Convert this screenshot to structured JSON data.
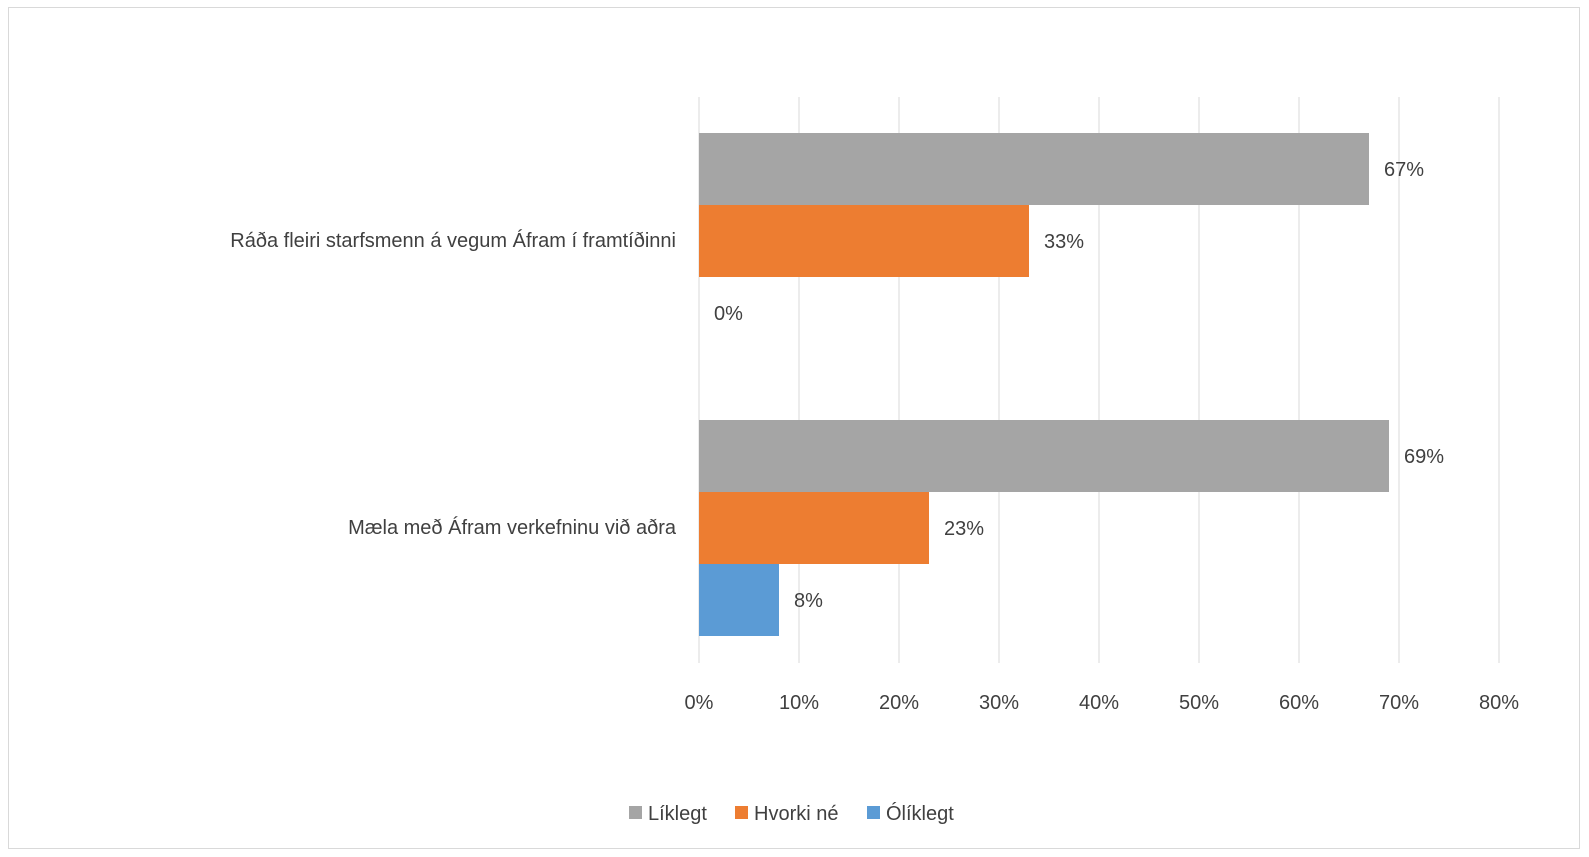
{
  "chart_data": {
    "type": "bar",
    "orientation": "horizontal",
    "categories": [
      "Ráða fleiri starfsmenn á vegum Áfram í framtíðinni",
      "Mæla með Áfram verkefninu við aðra"
    ],
    "series": [
      {
        "name": "Líklegt",
        "color": "#a5a5a5",
        "values": [
          67,
          69
        ],
        "labels": [
          "67%",
          "69%"
        ]
      },
      {
        "name": "Hvorki né",
        "color": "#ed7d31",
        "values": [
          33,
          23
        ],
        "labels": [
          "33%",
          "23%"
        ]
      },
      {
        "name": "Ólíklegt",
        "color": "#5b9bd5",
        "values": [
          0,
          8
        ],
        "labels": [
          "0%",
          "8%"
        ]
      }
    ],
    "x_ticks": [
      "0%",
      "10%",
      "20%",
      "30%",
      "40%",
      "50%",
      "60%",
      "70%",
      "80%"
    ],
    "xlim": [
      0,
      80
    ],
    "grid": "vertical",
    "legend_position": "bottom"
  }
}
